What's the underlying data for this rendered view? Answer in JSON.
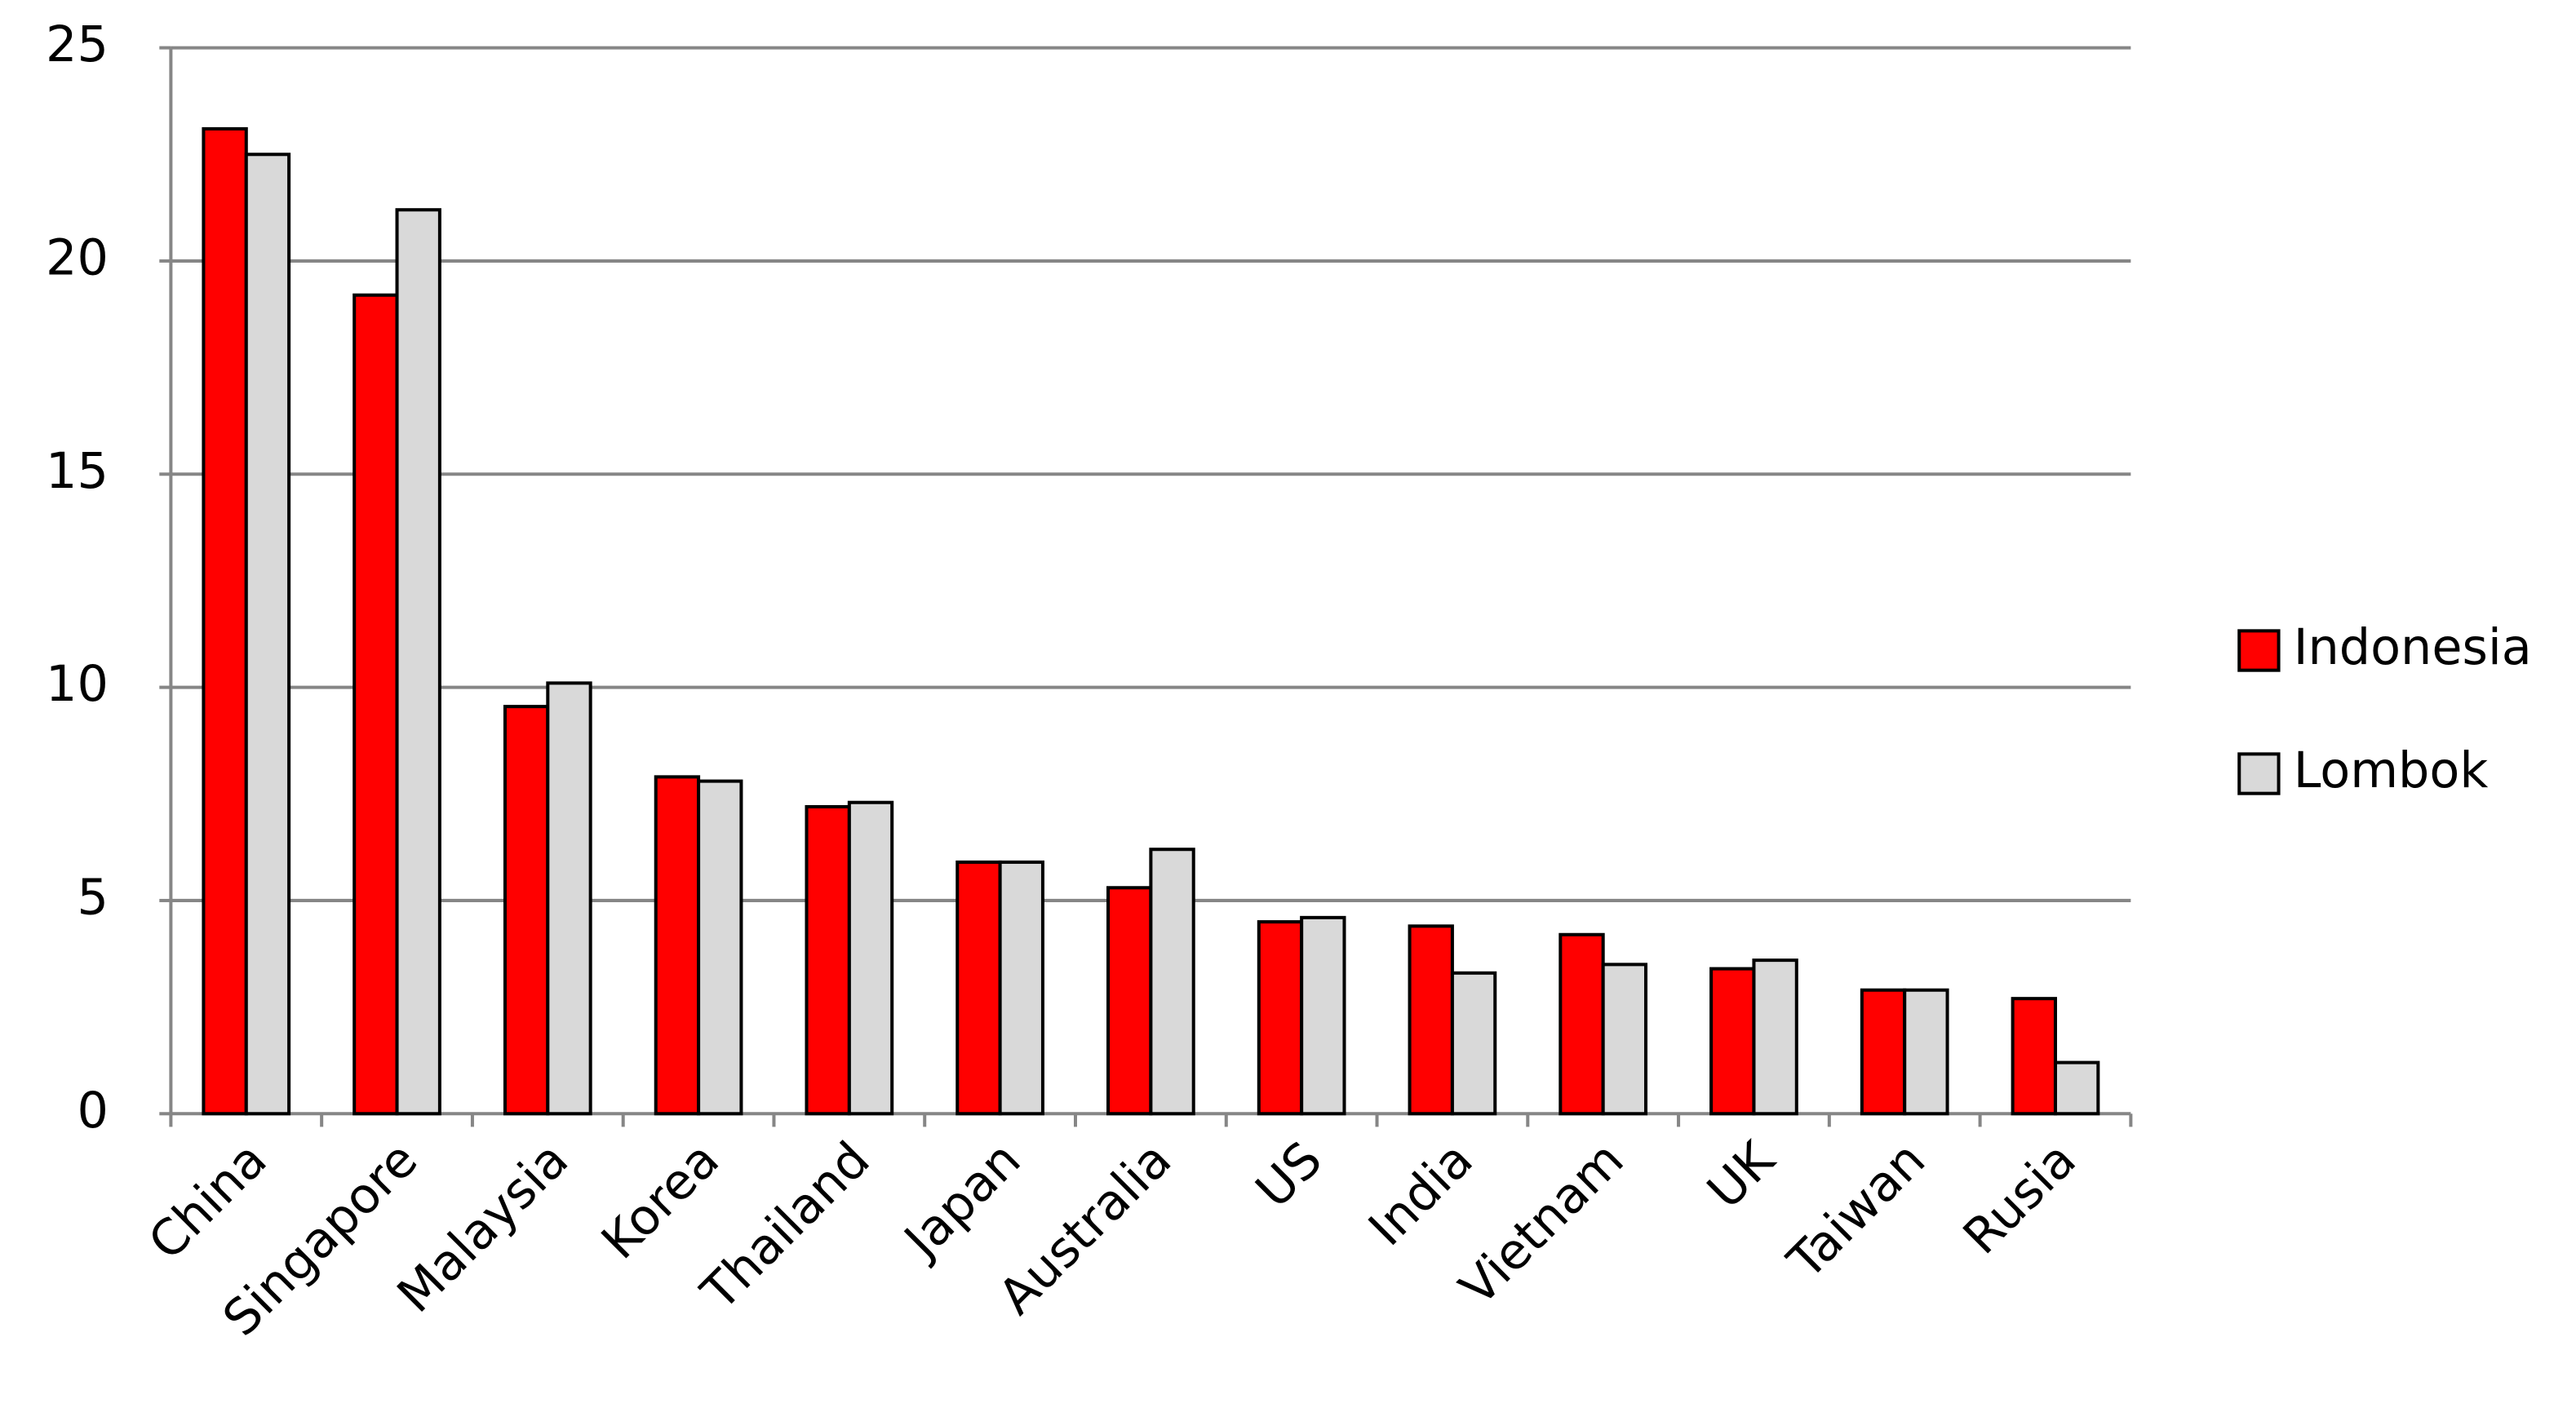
{
  "chart_data": {
    "type": "bar",
    "categories": [
      "China",
      "Singapore",
      "Malaysia",
      "Korea",
      "Thailand",
      "Japan",
      "Australia",
      "US",
      "India",
      "Vietnam",
      "UK",
      "Taiwan",
      "Rusia"
    ],
    "series": [
      {
        "name": "Indonesia",
        "color": "#ff0000",
        "values": [
          23.1,
          19.2,
          9.55,
          7.9,
          7.2,
          5.9,
          5.3,
          4.5,
          4.4,
          4.2,
          3.4,
          2.9,
          2.7
        ]
      },
      {
        "name": "Lombok",
        "color": "#d9d9d9",
        "values": [
          22.5,
          21.2,
          10.1,
          7.8,
          7.3,
          5.9,
          6.2,
          4.6,
          3.3,
          3.5,
          3.6,
          2.9,
          1.2
        ]
      }
    ],
    "ylim": [
      0,
      25
    ],
    "yticks": [
      0,
      5,
      10,
      15,
      20,
      25
    ],
    "grid": true,
    "legend": "right"
  }
}
